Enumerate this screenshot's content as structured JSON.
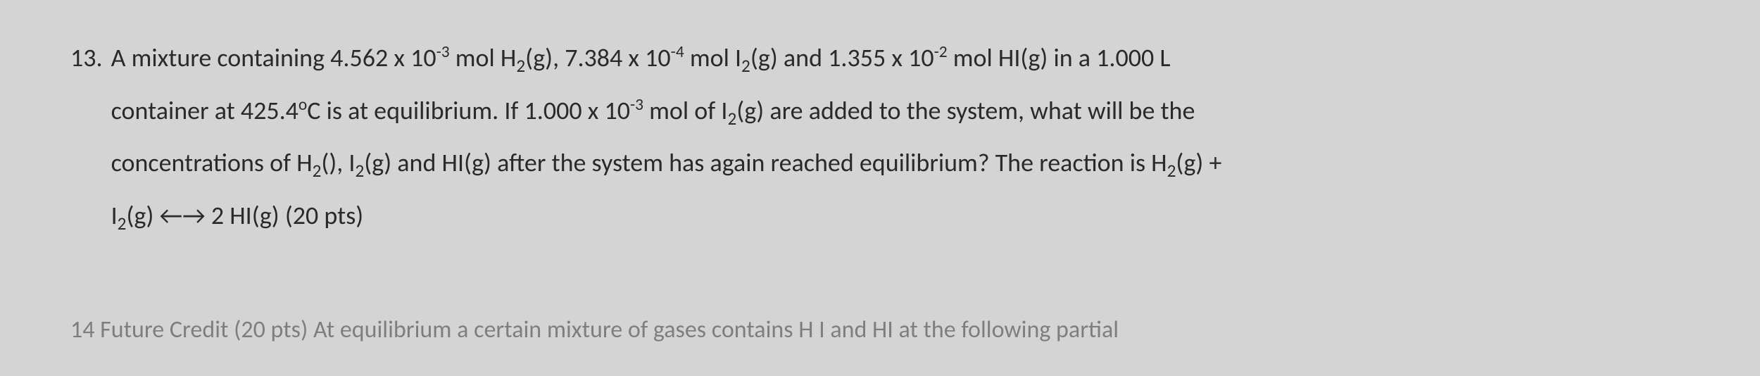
{
  "question": {
    "number": "13.",
    "line1_a": "A mixture containing 4.562 x 10",
    "line1_sup1": "-3",
    "line1_b": " mol H",
    "line1_sub1": "2",
    "line1_c": "(g), 7.384 x 10",
    "line1_sup2": "-4",
    "line1_d": " mol I",
    "line1_sub2": "2",
    "line1_e": "(g) and 1.355 x 10",
    "line1_sup3": "-2",
    "line1_f": " mol HI(g) in a 1.000 L",
    "line2_a": "container at 425.4",
    "line2_sup1": "o",
    "line2_b": "C is at equilibrium.  If 1.000 x 10",
    "line2_sup2": "-3",
    "line2_c": " mol of I",
    "line2_sub1": "2",
    "line2_d": "(g) are added to the system, what will be the",
    "line3_a": "concentrations of H",
    "line3_sub1": "2",
    "line3_b": "(), I",
    "line3_sub2": "2",
    "line3_c": "(g) and HI(g) after the system has again reached equilibrium? The reaction is H",
    "line3_sub3": "2",
    "line3_d": "(g)  +",
    "line4_a": "I",
    "line4_sub1": "2",
    "line4_b": "(g) ←→ 2 HI(g) (20 pts)"
  },
  "partial": "14   Future Credit (20 pts)  At equilibrium a certain mixture of gases contains H    I   and HI at the following partial"
}
